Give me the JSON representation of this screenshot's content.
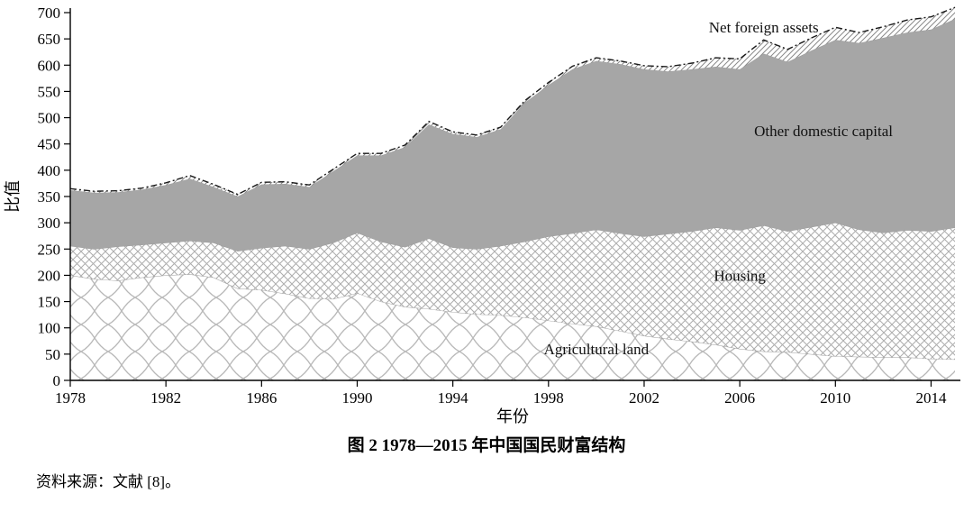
{
  "figure": {
    "title": "图 2  1978—2015 年中国国民财富结构",
    "source": "资料来源：文献 [8]。"
  },
  "chart_data": {
    "type": "area",
    "stacked": true,
    "title": "图 2  1978—2015 年中国国民财富结构",
    "xlabel": "年份",
    "ylabel": "比值",
    "ylim": [
      0,
      700
    ],
    "ytick_step": 50,
    "grid": false,
    "legend_position": "in-plot-annotations",
    "x": [
      1978,
      1979,
      1980,
      1981,
      1982,
      1983,
      1984,
      1985,
      1986,
      1987,
      1988,
      1989,
      1990,
      1991,
      1992,
      1993,
      1994,
      1995,
      1996,
      1997,
      1998,
      1999,
      2000,
      2001,
      2002,
      2003,
      2004,
      2005,
      2006,
      2007,
      2008,
      2009,
      2010,
      2011,
      2012,
      2013,
      2014,
      2015
    ],
    "xticks": [
      1978,
      1982,
      1986,
      1990,
      1994,
      1998,
      2002,
      2006,
      2010,
      2014
    ],
    "series": [
      {
        "name": "Agricultural land",
        "pattern": "scale",
        "values": [
          200,
          193,
          190,
          196,
          200,
          202,
          196,
          175,
          172,
          165,
          156,
          155,
          166,
          150,
          140,
          136,
          130,
          126,
          124,
          120,
          114,
          108,
          103,
          94,
          85,
          79,
          74,
          68,
          60,
          55,
          54,
          50,
          46,
          45,
          44,
          44,
          41,
          40
        ]
      },
      {
        "name": "Housing",
        "pattern": "crosshatch",
        "values": [
          56,
          57,
          65,
          62,
          62,
          64,
          66,
          71,
          80,
          91,
          94,
          107,
          115,
          114,
          114,
          134,
          123,
          124,
          132,
          144,
          160,
          172,
          184,
          186,
          189,
          200,
          210,
          223,
          226,
          240,
          230,
          242,
          254,
          242,
          237,
          242,
          243,
          251
        ]
      },
      {
        "name": "Other domestic capital",
        "pattern": "gray",
        "values": [
          106,
          107,
          103,
          105,
          110,
          118,
          106,
          104,
          121,
          118,
          118,
          136,
          147,
          164,
          190,
          217,
          216,
          213,
          222,
          264,
          288,
          312,
          321,
          322,
          318,
          309,
          308,
          306,
          306,
          327,
          322,
          336,
          348,
          355,
          371,
          376,
          384,
          397
        ]
      },
      {
        "name": "Net foreign assets",
        "pattern": "diagonal",
        "values": [
          3,
          3,
          3,
          3,
          4,
          6,
          5,
          4,
          4,
          4,
          4,
          4,
          4,
          4,
          4,
          6,
          4,
          4,
          4,
          4,
          5,
          6,
          6,
          6,
          7,
          9,
          12,
          17,
          20,
          26,
          24,
          24,
          24,
          20,
          21,
          24,
          24,
          22
        ]
      }
    ],
    "annotations": [
      {
        "text": "Net foreign assets",
        "year": 2007,
        "value": 662
      },
      {
        "text": "Other domestic capital",
        "year": 2009.5,
        "value": 465
      },
      {
        "text": "Housing",
        "year": 2006,
        "value": 190
      },
      {
        "text": "Agricultural land",
        "year": 2000,
        "value": 50
      }
    ],
    "colors": {
      "gray_fill": "#a6a6a6",
      "hatch_line": "#b3b3b3",
      "axis": "#000000",
      "top_edge": "#1a1a1a"
    }
  }
}
